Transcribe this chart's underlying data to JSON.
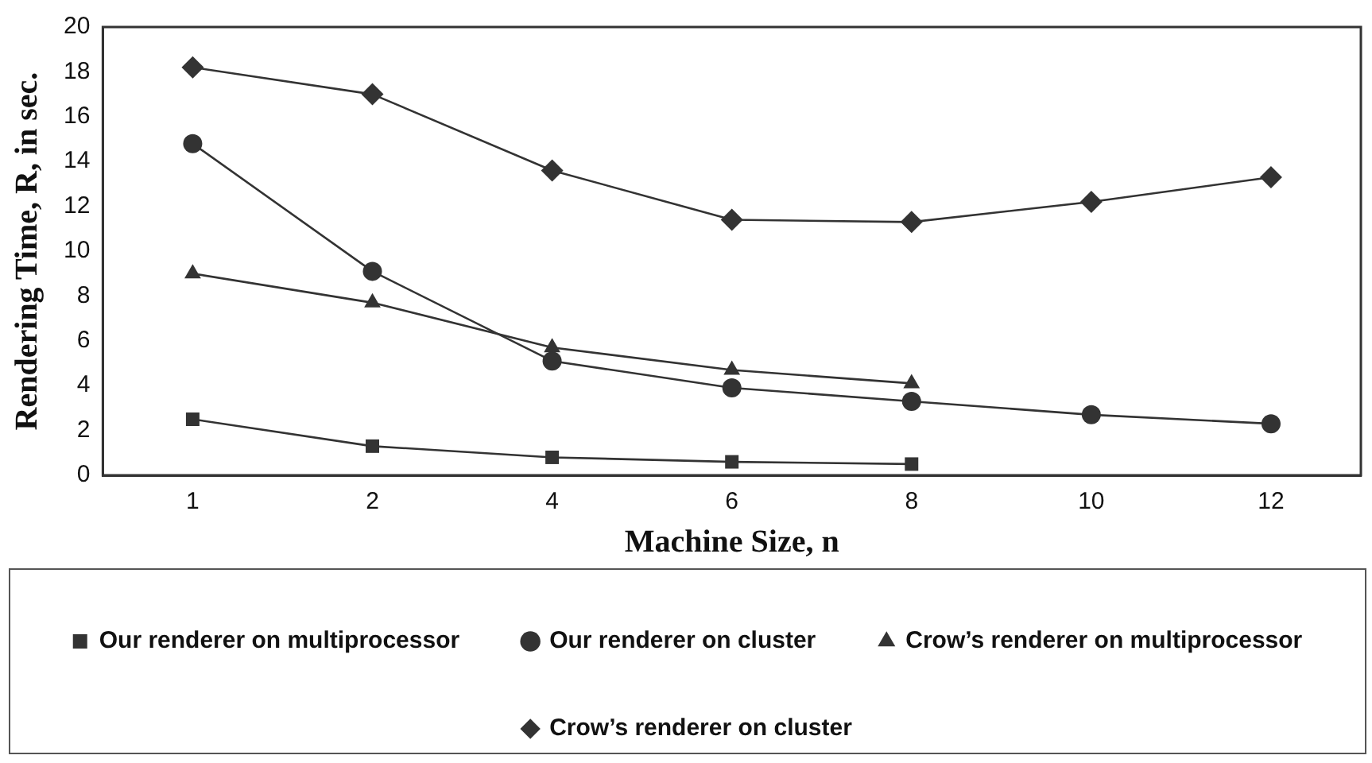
{
  "chart_data": {
    "type": "line",
    "xlabel": "Machine Size, n",
    "ylabel": "Rendering Time, R, in sec.",
    "categories": [
      "1",
      "2",
      "4",
      "6",
      "8",
      "10",
      "12"
    ],
    "series": [
      {
        "name": "Our renderer on multiprocessor",
        "color": "#333333",
        "marker": "square",
        "values": [
          2.5,
          1.3,
          0.8,
          0.6,
          0.5,
          null,
          null
        ]
      },
      {
        "name": "Our renderer on cluster",
        "color": "#333333",
        "marker": "circle",
        "values": [
          14.8,
          9.1,
          5.1,
          3.9,
          3.3,
          2.7,
          2.3
        ]
      },
      {
        "name": "Crow’s renderer on multiprocessor",
        "color": "#333333",
        "marker": "triangle",
        "values": [
          9.0,
          7.7,
          5.7,
          4.7,
          4.1,
          null,
          null
        ]
      },
      {
        "name": "Crow’s renderer on cluster",
        "color": "#333333",
        "marker": "diamond",
        "values": [
          18.2,
          17.0,
          13.6,
          11.4,
          11.3,
          12.2,
          13.3
        ]
      }
    ],
    "ylim": [
      0,
      20
    ],
    "yticks": [
      0,
      2,
      4,
      6,
      8,
      10,
      12,
      14,
      16,
      18,
      20
    ],
    "grid": false,
    "legend": "bottom",
    "line_style": "solid"
  }
}
